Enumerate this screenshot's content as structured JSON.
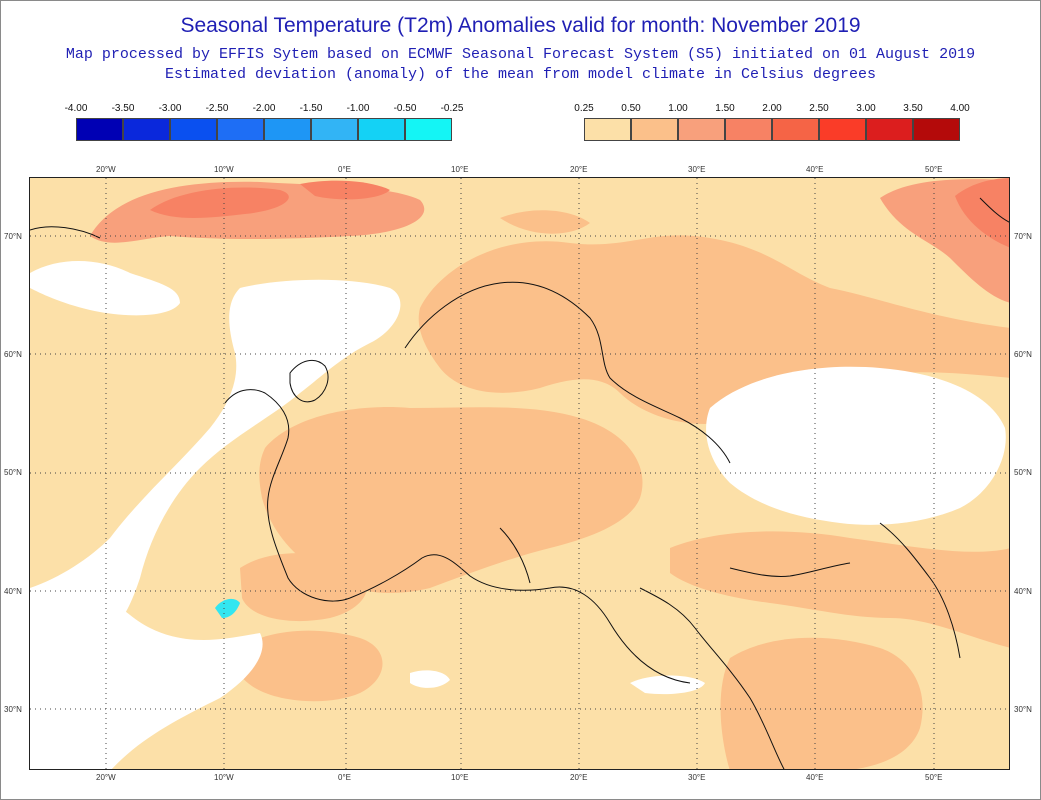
{
  "title": "Seasonal Temperature (T2m) Anomalies valid for month: November 2019",
  "subtitle1": "Map processed by EFFIS Sytem based on ECMWF Seasonal Forecast System (S5) initiated on 01 August 2019",
  "subtitle2": "Estimated deviation (anomaly) of the mean from model climate in Celsius degrees",
  "legend_negative": {
    "labels": [
      "-4.00",
      "-3.50",
      "-3.00",
      "-2.50",
      "-2.00",
      "-1.50",
      "-1.00",
      "-0.50",
      "-0.25"
    ],
    "colors": [
      "#0000b4",
      "#0a28dc",
      "#0a50f0",
      "#1e6ef5",
      "#1e96f5",
      "#32b4f5",
      "#14d2f5",
      "#14f5f5"
    ]
  },
  "legend_positive": {
    "labels": [
      "0.25",
      "0.50",
      "1.00",
      "1.50",
      "2.00",
      "2.50",
      "3.00",
      "3.50",
      "4.00"
    ],
    "colors": [
      "#fce0a8",
      "#fbc08a",
      "#f8a07c",
      "#f78264",
      "#f56446",
      "#fa3c28",
      "#dc1e1e",
      "#b40a0a"
    ]
  },
  "lon_labels": [
    "20°W",
    "10°W",
    "0°E",
    "10°E",
    "20°E",
    "30°E",
    "40°E",
    "50°E"
  ],
  "lat_labels": [
    "70°N",
    "60°N",
    "50°N",
    "40°N",
    "30°N"
  ],
  "anomaly_colors": {
    "background": "#fce0a8",
    "level1": "#fbc08a",
    "level2": "#f8a07c",
    "level3": "#f78264",
    "none": "#ffffff",
    "cold": "#33e6f0"
  }
}
